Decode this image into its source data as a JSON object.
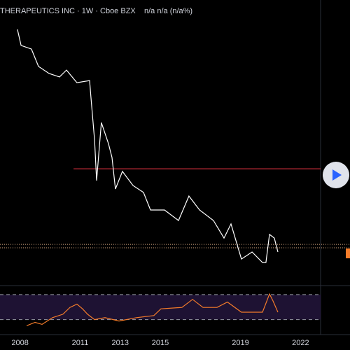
{
  "chart_data": [
    {
      "type": "line",
      "title": "THERAPEUTICS INC · 1W · Cboe BZX",
      "subtitle": "n/a n/a (n/a%)",
      "x": [
        2007.87,
        2008.05,
        2008.57,
        2008.92,
        2009.45,
        2009.97,
        2010.32,
        2010.84,
        2011.47,
        2011.54,
        2011.72,
        2011.82,
        2012.06,
        2012.41,
        2012.59,
        2012.76,
        2013.11,
        2013.64,
        2014.16,
        2014.51,
        2015.21,
        2015.91,
        2016.43,
        2016.96,
        2017.65,
        2018.18,
        2018.53,
        2019.05,
        2019.58,
        2020.1,
        2020.27,
        2020.45,
        2020.69,
        2020.87
      ],
      "values": [
        96.8,
        90.7,
        89.3,
        82.7,
        80,
        78.7,
        81.3,
        76.5,
        77.3,
        70.7,
        54.7,
        39.2,
        61.3,
        53.3,
        48,
        36,
        42.7,
        37.3,
        34.7,
        28,
        28,
        24,
        33.3,
        28,
        24,
        17.3,
        22.7,
        9.3,
        12,
        8,
        8,
        18.7,
        17.3,
        12
      ],
      "color": "#ffffff",
      "xlim": [
        2007,
        2023
      ],
      "ylim": [
        0,
        100
      ],
      "xticks": [
        2008,
        2011,
        2013,
        2015,
        2019,
        2022
      ],
      "hline": {
        "value": 43.7,
        "start": 2010.67,
        "color": "#f23645"
      },
      "price_lines": {
        "values": [
          14.9,
          13.6
        ],
        "color": "#d8a880"
      }
    },
    {
      "type": "line",
      "x": [
        2008.33,
        2008.75,
        2009.1,
        2009.62,
        2010.14,
        2010.49,
        2010.84,
        2011.12,
        2011.37,
        2011.72,
        2012.24,
        2012.94,
        2013.81,
        2014.68,
        2015.03,
        2016.08,
        2016.61,
        2017.13,
        2017.83,
        2018.35,
        2019.05,
        2020.1,
        2020.45,
        2020.62,
        2020.87
      ],
      "values": [
        20.3,
        25.7,
        22.4,
        33.2,
        38.6,
        49.5,
        54.9,
        47.3,
        38.6,
        30,
        33.2,
        27.8,
        33.2,
        36.5,
        47.3,
        49.5,
        62.4,
        49.5,
        49.5,
        58.1,
        41.9,
        41.9,
        71,
        60.3,
        41.9
      ],
      "color": "#f57c2a",
      "xlim": [
        2007,
        2023
      ],
      "ylim": [
        15,
        80
      ],
      "bands": [
        30,
        70
      ]
    }
  ]
}
